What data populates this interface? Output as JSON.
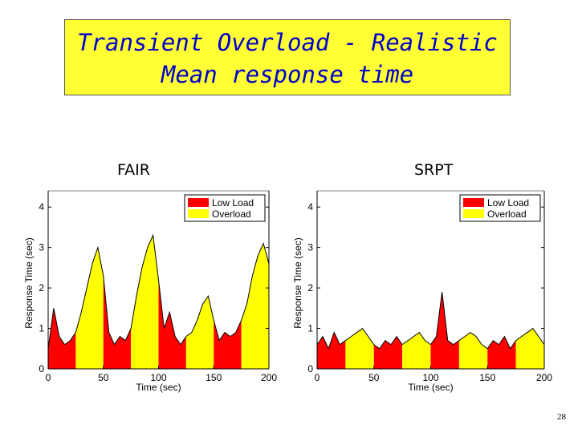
{
  "slide": {
    "title_line1": "Transient Overload - Realistic",
    "title_line2": "Mean response time",
    "page_number": "28",
    "colors": {
      "title_bg": "#ffff33",
      "title_text": "#0000cc",
      "low_load": "#ff0000",
      "overload": "#ffff00"
    }
  },
  "chart_data": [
    {
      "type": "area",
      "label": "FAIR",
      "xlabel": "Time (sec)",
      "ylabel": "Response Time (sec)",
      "xlim": [
        0,
        200
      ],
      "ylim": [
        0,
        4.4
      ],
      "xticks": [
        "0",
        "50",
        "100",
        "150",
        "200"
      ],
      "yticks": [
        "0",
        "1",
        "2",
        "3",
        "4"
      ],
      "legend": [
        "Low Load",
        "Overload"
      ],
      "segments": [
        {
          "series": "Low Load",
          "x": [
            0,
            25
          ]
        },
        {
          "series": "Overload",
          "x": [
            25,
            50
          ]
        },
        {
          "series": "Low Load",
          "x": [
            50,
            75
          ]
        },
        {
          "series": "Overload",
          "x": [
            75,
            100
          ]
        },
        {
          "series": "Low Load",
          "x": [
            100,
            125
          ]
        },
        {
          "series": "Overload",
          "x": [
            125,
            150
          ]
        },
        {
          "series": "Low Load",
          "x": [
            150,
            175
          ]
        },
        {
          "series": "Overload",
          "x": [
            175,
            200
          ]
        }
      ],
      "x": [
        0,
        5,
        10,
        15,
        20,
        25,
        30,
        35,
        40,
        45,
        50,
        55,
        60,
        65,
        70,
        75,
        80,
        85,
        90,
        95,
        100,
        105,
        110,
        115,
        120,
        125,
        130,
        135,
        140,
        145,
        150,
        155,
        160,
        165,
        170,
        175,
        180,
        185,
        190,
        195,
        200
      ],
      "values": [
        0.5,
        1.5,
        0.8,
        0.6,
        0.7,
        0.9,
        1.4,
        2.0,
        2.6,
        3.0,
        2.3,
        0.9,
        0.6,
        0.8,
        0.7,
        1.0,
        1.8,
        2.5,
        3.0,
        3.3,
        2.2,
        1.0,
        1.4,
        0.8,
        0.6,
        0.8,
        0.9,
        1.2,
        1.6,
        1.8,
        1.2,
        0.7,
        0.9,
        0.8,
        0.9,
        1.2,
        1.6,
        2.3,
        2.8,
        3.1,
        2.6
      ]
    },
    {
      "type": "area",
      "label": "SRPT",
      "xlabel": "Time (sec)",
      "ylabel": "Response Time (sec)",
      "xlim": [
        0,
        200
      ],
      "ylim": [
        0,
        4.4
      ],
      "xticks": [
        "0",
        "50",
        "100",
        "150",
        "200"
      ],
      "yticks": [
        "0",
        "1",
        "2",
        "3",
        "4"
      ],
      "legend": [
        "Low Load",
        "Overload"
      ],
      "segments": [
        {
          "series": "Low Load",
          "x": [
            0,
            25
          ]
        },
        {
          "series": "Overload",
          "x": [
            25,
            50
          ]
        },
        {
          "series": "Low Load",
          "x": [
            50,
            75
          ]
        },
        {
          "series": "Overload",
          "x": [
            75,
            100
          ]
        },
        {
          "series": "Low Load",
          "x": [
            100,
            125
          ]
        },
        {
          "series": "Overload",
          "x": [
            125,
            150
          ]
        },
        {
          "series": "Low Load",
          "x": [
            150,
            175
          ]
        },
        {
          "series": "Overload",
          "x": [
            175,
            200
          ]
        }
      ],
      "x": [
        0,
        5,
        10,
        15,
        20,
        25,
        30,
        35,
        40,
        45,
        50,
        55,
        60,
        65,
        70,
        75,
        80,
        85,
        90,
        95,
        100,
        105,
        110,
        115,
        120,
        125,
        130,
        135,
        140,
        145,
        150,
        155,
        160,
        165,
        170,
        175,
        180,
        185,
        190,
        195,
        200
      ],
      "values": [
        0.6,
        0.8,
        0.5,
        0.9,
        0.6,
        0.7,
        0.8,
        0.9,
        1.0,
        0.8,
        0.6,
        0.5,
        0.7,
        0.6,
        0.8,
        0.6,
        0.7,
        0.8,
        0.9,
        0.7,
        0.6,
        0.8,
        1.9,
        0.7,
        0.6,
        0.7,
        0.8,
        0.9,
        0.8,
        0.6,
        0.5,
        0.7,
        0.6,
        0.8,
        0.5,
        0.7,
        0.8,
        0.9,
        1.0,
        0.8,
        0.6
      ]
    }
  ]
}
